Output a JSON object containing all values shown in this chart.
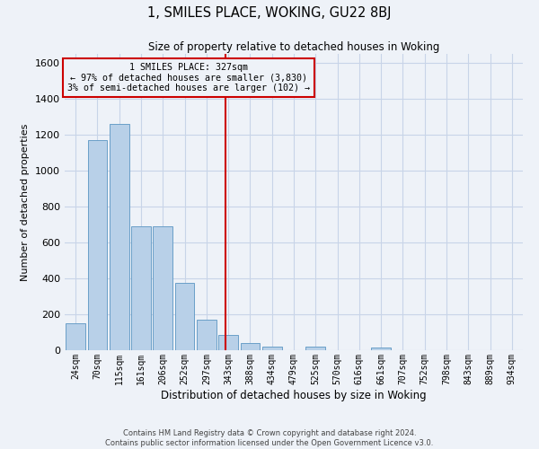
{
  "title": "1, SMILES PLACE, WOKING, GU22 8BJ",
  "subtitle": "Size of property relative to detached houses in Woking",
  "xlabel": "Distribution of detached houses by size in Woking",
  "ylabel": "Number of detached properties",
  "bar_labels": [
    "24sqm",
    "70sqm",
    "115sqm",
    "161sqm",
    "206sqm",
    "252sqm",
    "297sqm",
    "343sqm",
    "388sqm",
    "434sqm",
    "479sqm",
    "525sqm",
    "570sqm",
    "616sqm",
    "661sqm",
    "707sqm",
    "752sqm",
    "798sqm",
    "843sqm",
    "889sqm",
    "934sqm"
  ],
  "bar_values": [
    148,
    1170,
    1260,
    690,
    690,
    375,
    170,
    85,
    38,
    18,
    0,
    20,
    0,
    0,
    15,
    0,
    0,
    0,
    0,
    0,
    0
  ],
  "bar_color": "#b8d0e8",
  "bar_edgecolor": "#6a9fc8",
  "property_size": 327,
  "pct_smaller": 97,
  "count_smaller": 3830,
  "pct_larger": 3,
  "count_larger": 102,
  "vline_color": "#cc0000",
  "annotation_box_edgecolor": "#cc0000",
  "ylim": [
    0,
    1650
  ],
  "yticks": [
    0,
    200,
    400,
    600,
    800,
    1000,
    1200,
    1400,
    1600
  ],
  "grid_color": "#c8d4e8",
  "background_color": "#eef2f8",
  "footer_line1": "Contains HM Land Registry data © Crown copyright and database right 2024.",
  "footer_line2": "Contains public sector information licensed under the Open Government Licence v3.0."
}
